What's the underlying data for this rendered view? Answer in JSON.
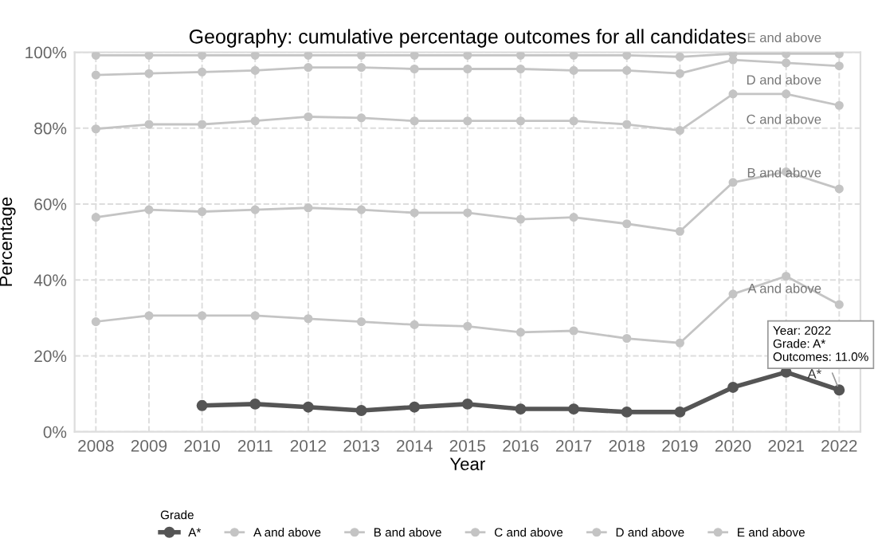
{
  "chart_data": {
    "type": "line",
    "title": "Geography: cumulative percentage outcomes for all candidates",
    "xlabel": "Year",
    "ylabel": "Percentage",
    "legend_title": "Grade",
    "x": [
      2008,
      2009,
      2010,
      2011,
      2012,
      2013,
      2014,
      2015,
      2016,
      2017,
      2018,
      2019,
      2020,
      2021,
      2022
    ],
    "series": [
      {
        "name": "A*",
        "color": "#555555",
        "values": [
          null,
          null,
          6.9,
          7.3,
          6.5,
          5.6,
          6.5,
          7.3,
          6.0,
          6.0,
          5.2,
          5.2,
          11.7,
          15.7,
          11.0
        ]
      },
      {
        "name": "A and above",
        "color": "#c4c4c4",
        "values": [
          29.0,
          30.6,
          30.6,
          30.6,
          29.8,
          29.0,
          28.2,
          27.8,
          26.2,
          26.6,
          24.6,
          23.4,
          36.3,
          41.0,
          33.5
        ]
      },
      {
        "name": "B and above",
        "color": "#c4c4c4",
        "values": [
          56.5,
          58.5,
          58.0,
          58.5,
          59.0,
          58.5,
          57.7,
          57.7,
          56.0,
          56.5,
          54.8,
          52.8,
          65.7,
          68.5,
          64.0
        ]
      },
      {
        "name": "C and above",
        "color": "#c4c4c4",
        "values": [
          79.8,
          81.0,
          81.0,
          81.9,
          83.0,
          82.7,
          81.9,
          81.9,
          81.9,
          81.9,
          81.0,
          79.4,
          89.0,
          89.0,
          86.0
        ]
      },
      {
        "name": "D and above",
        "color": "#c4c4c4",
        "values": [
          94.0,
          94.4,
          94.8,
          95.2,
          96.0,
          96.0,
          95.6,
          95.6,
          95.6,
          95.2,
          95.2,
          94.4,
          98.0,
          97.2,
          96.4
        ]
      },
      {
        "name": "E and above",
        "color": "#c4c4c4",
        "values": [
          99.2,
          99.2,
          99.2,
          99.2,
          99.2,
          99.2,
          99.2,
          99.2,
          99.2,
          99.2,
          99.2,
          98.8,
          99.6,
          99.6,
          99.6
        ]
      }
    ],
    "xlim": [
      2007.6,
      2022.4
    ],
    "xticks": [
      2008,
      2009,
      2010,
      2011,
      2012,
      2013,
      2014,
      2015,
      2016,
      2017,
      2018,
      2019,
      2020,
      2021,
      2022
    ],
    "ylim": [
      0,
      100
    ],
    "yticks": [
      {
        "value": 0,
        "label": "0%"
      },
      {
        "value": 20,
        "label": "20%"
      },
      {
        "value": 40,
        "label": "40%"
      },
      {
        "value": 60,
        "label": "60%"
      },
      {
        "value": 80,
        "label": "80%"
      },
      {
        "value": 100,
        "label": "100%"
      }
    ],
    "annotations": [
      {
        "text": "Year: 2022\nGrade: A*\nOutcomes: 11.0%",
        "x": 2022,
        "y": 11.0
      }
    ],
    "grid": true,
    "legend": "bottom",
    "marker": "circle",
    "line_style": "solid"
  }
}
